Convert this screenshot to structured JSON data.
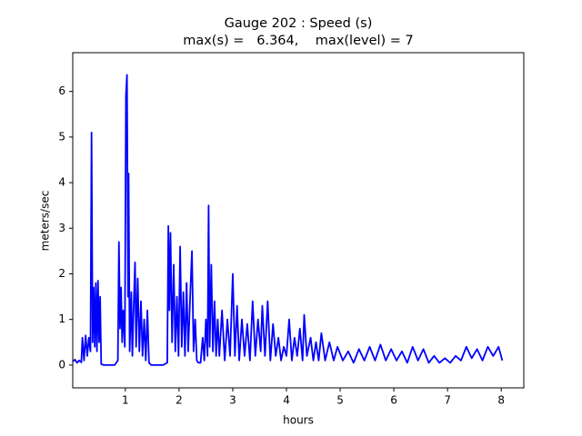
{
  "chart_data": {
    "type": "line",
    "title": "Gauge 202 : Speed (s)",
    "subtitle": "max(s) =   6.364,    max(level) = 7",
    "x_label": "hours",
    "y_label": "meters/sec",
    "x": [
      0.02,
      0.06,
      0.1,
      0.14,
      0.18,
      0.2,
      0.23,
      0.26,
      0.29,
      0.32,
      0.35,
      0.37,
      0.39,
      0.41,
      0.43,
      0.45,
      0.47,
      0.49,
      0.51,
      0.53,
      0.55,
      0.6,
      0.7,
      0.8,
      0.86,
      0.88,
      0.9,
      0.92,
      0.94,
      0.96,
      0.99,
      1.01,
      1.03,
      1.05,
      1.06,
      1.08,
      1.11,
      1.13,
      1.15,
      1.18,
      1.2,
      1.23,
      1.26,
      1.29,
      1.32,
      1.35,
      1.38,
      1.41,
      1.44,
      1.48,
      1.6,
      1.7,
      1.78,
      1.8,
      1.82,
      1.84,
      1.87,
      1.9,
      1.93,
      1.96,
      1.99,
      2.02,
      2.05,
      2.08,
      2.11,
      2.14,
      2.17,
      2.2,
      2.24,
      2.27,
      2.3,
      2.33,
      2.36,
      2.4,
      2.44,
      2.47,
      2.5,
      2.53,
      2.55,
      2.57,
      2.6,
      2.63,
      2.66,
      2.69,
      2.72,
      2.75,
      2.8,
      2.85,
      2.9,
      2.95,
      3.0,
      3.04,
      3.08,
      3.12,
      3.17,
      3.22,
      3.27,
      3.32,
      3.37,
      3.42,
      3.47,
      3.52,
      3.55,
      3.6,
      3.65,
      3.7,
      3.75,
      3.8,
      3.85,
      3.9,
      3.95,
      4.0,
      4.05,
      4.1,
      4.15,
      4.2,
      4.25,
      4.3,
      4.33,
      4.38,
      4.45,
      4.5,
      4.55,
      4.6,
      4.65,
      4.72,
      4.8,
      4.88,
      4.95,
      5.05,
      5.15,
      5.25,
      5.35,
      5.45,
      5.55,
      5.65,
      5.75,
      5.85,
      5.95,
      6.05,
      6.15,
      6.25,
      6.35,
      6.45,
      6.55,
      6.65,
      6.75,
      6.85,
      6.95,
      7.05,
      7.15,
      7.25,
      7.35,
      7.45,
      7.55,
      7.65,
      7.75,
      7.85,
      7.95,
      8.02
    ],
    "series": [
      {
        "name": "s",
        "color": "#0000ff",
        "values": [
          0.08,
          0.12,
          0.05,
          0.1,
          0.06,
          0.6,
          0.1,
          0.65,
          0.2,
          0.6,
          0.3,
          5.1,
          0.5,
          1.7,
          0.4,
          1.8,
          0.3,
          1.85,
          0.5,
          1.5,
          0.02,
          0,
          0,
          0,
          0.1,
          2.7,
          0.8,
          1.7,
          0.5,
          1.2,
          0.4,
          5.9,
          6.364,
          1.5,
          4.2,
          0.3,
          1.6,
          0.2,
          1.1,
          2.25,
          0.4,
          1.9,
          0.3,
          1.4,
          0.2,
          1.0,
          0.1,
          1.2,
          0.05,
          0,
          0,
          0,
          0.05,
          3.05,
          1.2,
          2.9,
          0.5,
          2.2,
          0.3,
          1.5,
          0.2,
          2.6,
          0.4,
          1.6,
          0.2,
          1.8,
          0.3,
          1.3,
          2.5,
          0.3,
          1.0,
          0.1,
          0.05,
          0.05,
          0.6,
          0.1,
          1.0,
          0.2,
          3.5,
          0.4,
          2.2,
          0.3,
          1.4,
          0.2,
          1.0,
          0.2,
          1.2,
          0.1,
          1.0,
          0.2,
          2.0,
          0.2,
          1.3,
          0.1,
          1.0,
          0.2,
          0.9,
          0.1,
          1.4,
          0.2,
          1.0,
          0.3,
          1.3,
          0.2,
          1.4,
          0.1,
          0.9,
          0.2,
          0.6,
          0.1,
          0.4,
          0.2,
          1.0,
          0.1,
          0.6,
          0.2,
          0.8,
          0.1,
          1.1,
          0.2,
          0.6,
          0.1,
          0.5,
          0.1,
          0.7,
          0.1,
          0.5,
          0.1,
          0.4,
          0.1,
          0.3,
          0.05,
          0.35,
          0.1,
          0.4,
          0.1,
          0.45,
          0.1,
          0.35,
          0.1,
          0.3,
          0.05,
          0.4,
          0.1,
          0.35,
          0.05,
          0.2,
          0.05,
          0.15,
          0.05,
          0.2,
          0.1,
          0.4,
          0.15,
          0.35,
          0.1,
          0.4,
          0.2,
          0.4,
          0.1
        ]
      }
    ],
    "xlim": [
      0.02,
      8.42
    ],
    "ylim": [
      -0.5,
      6.85
    ],
    "xticks": [
      1,
      2,
      3,
      4,
      5,
      6,
      7,
      8
    ],
    "yticks": [
      0,
      1,
      2,
      3,
      4,
      5,
      6
    ]
  }
}
